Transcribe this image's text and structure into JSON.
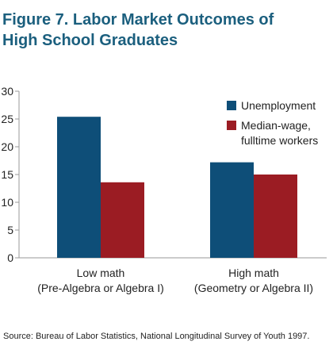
{
  "figure": {
    "title_line1": "Figure 7. Labor Market Outcomes of",
    "title_line2": "High School  Graduates",
    "source": "Source: Bureau of Labor Statistics, National Longitudinal Survey of Youth 1997.",
    "title_color": "#1b5f7e"
  },
  "chart_data": {
    "type": "bar",
    "categories": [
      [
        "Low math",
        "(Pre-Algebra or Algebra I)"
      ],
      [
        "High math",
        "(Geometry or Algebra II)"
      ]
    ],
    "series": [
      {
        "name": "Unemployment",
        "values": [
          25.4,
          17.2
        ],
        "color": "#0e4e78"
      },
      {
        "name": "Median-wage, fulltime workers",
        "legend_lines": [
          "Median-wage,",
          "fulltime workers"
        ],
        "values": [
          13.6,
          15.0
        ],
        "color": "#9b1c23"
      }
    ],
    "ylim": [
      0,
      30
    ],
    "yticks": [
      0,
      5,
      10,
      15,
      20,
      25,
      30
    ],
    "title": "",
    "xlabel": "",
    "ylabel": "",
    "grid": false,
    "legend_position": "top-right"
  }
}
